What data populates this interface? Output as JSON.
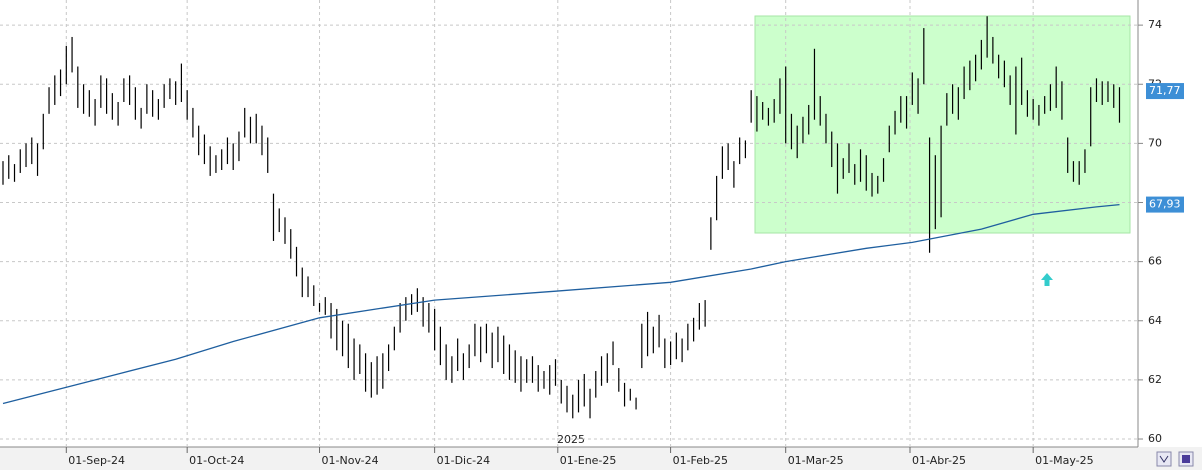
{
  "chart_data": {
    "type": "ohlc",
    "xlim": [
      0,
      196
    ],
    "xticks": [
      {
        "value": 11,
        "label": "01-Sep-24"
      },
      {
        "value": 32,
        "label": "01-Oct-24"
      },
      {
        "value": 55,
        "label": "01-Nov-24"
      },
      {
        "value": 75,
        "label": "01-Dic-24"
      },
      {
        "value": 96.4,
        "label": "01-Ene-25"
      },
      {
        "value": 116,
        "label": "01-Feb-25"
      },
      {
        "value": 136,
        "label": "01-Mar-25"
      },
      {
        "value": 157.6,
        "label": "01-Abr-25"
      },
      {
        "value": 179,
        "label": "01-May-25"
      }
    ],
    "year_label": "2025",
    "ylim": [
      59.73,
      74.85
    ],
    "yticks": [
      60,
      62,
      64,
      66,
      68,
      70,
      72,
      74
    ],
    "grid": true,
    "color": "#000000",
    "high": [
      69.4,
      69.6,
      69.3,
      69.8,
      70.0,
      70.2,
      70.0,
      71.0,
      71.9,
      72.3,
      72.5,
      73.3,
      73.6,
      72.6,
      72.0,
      71.8,
      71.5,
      72.3,
      72.2,
      71.7,
      71.4,
      72.2,
      72.3,
      71.9,
      71.2,
      72.0,
      71.8,
      71.5,
      72.0,
      72.2,
      72.1,
      72.7,
      71.8,
      71.2,
      70.6,
      70.3,
      69.9,
      69.6,
      69.8,
      70.2,
      70.0,
      70.4,
      71.2,
      70.9,
      71.0,
      70.6,
      70.2,
      68.3,
      67.8,
      67.5,
      67.1,
      66.5,
      65.8,
      65.5,
      65.2,
      64.6,
      64.8,
      64.6,
      64.4,
      64.0,
      63.9,
      63.4,
      63.2,
      62.9,
      62.6,
      62.8,
      62.9,
      63.2,
      63.8,
      64.6,
      64.8,
      64.9,
      65.1,
      64.8,
      64.6,
      64.4,
      63.8,
      63.2,
      62.8,
      63.4,
      62.9,
      63.2,
      63.9,
      63.8,
      63.9,
      63.6,
      63.8,
      63.5,
      63.2,
      63.0,
      62.8,
      62.7,
      62.8,
      62.5,
      62.3,
      62.5,
      62.7,
      62.0,
      61.8,
      61.5,
      62.0,
      62.2,
      61.7,
      62.3,
      62.8,
      62.9,
      63.3,
      62.4,
      61.9,
      61.7,
      61.4,
      63.9,
      64.3,
      63.8,
      64.2,
      63.4,
      63.3,
      63.6,
      63.4,
      63.9,
      64.1,
      64.6,
      64.7,
      67.5,
      68.9,
      69.9,
      70.0,
      69.4,
      70.2,
      70.1,
      71.8,
      71.6,
      71.4,
      71.2,
      71.5,
      72.2,
      72.6,
      71.0,
      70.6,
      70.9,
      71.3,
      73.2,
      71.6,
      71.0,
      70.4,
      70.0,
      69.5,
      70.0,
      69.3,
      69.8,
      69.6,
      69.0,
      68.9,
      69.5,
      70.6,
      71.1,
      71.6,
      71.6,
      72.4,
      72.2,
      73.9,
      70.2,
      69.6,
      70.6,
      71.7,
      72.0,
      71.9,
      72.6,
      72.8,
      73.0,
      73.5,
      74.3,
      73.6,
      73.0,
      72.8,
      72.3,
      72.6,
      72.9,
      71.8,
      71.5,
      71.3,
      71.6,
      72.0,
      72.6,
      72.1,
      70.2,
      69.4,
      69.4,
      69.8,
      71.9,
      72.2,
      72.1,
      72.1,
      72.0,
      71.9
    ],
    "low": [
      68.6,
      68.8,
      68.7,
      69.0,
      69.2,
      69.3,
      68.9,
      69.8,
      71.0,
      71.3,
      71.6,
      72.0,
      72.4,
      71.2,
      71.0,
      70.9,
      70.6,
      71.2,
      71.0,
      70.8,
      70.6,
      71.4,
      71.3,
      70.8,
      70.5,
      71.0,
      70.9,
      70.8,
      71.2,
      71.5,
      71.3,
      71.4,
      70.8,
      70.2,
      69.6,
      69.3,
      68.9,
      69.0,
      69.1,
      69.3,
      69.1,
      69.4,
      70.2,
      70.0,
      70.0,
      69.6,
      69.0,
      66.7,
      67.0,
      66.6,
      66.1,
      65.5,
      64.8,
      64.8,
      64.5,
      64.3,
      64.2,
      63.4,
      63.0,
      62.8,
      62.4,
      62.0,
      62.2,
      61.6,
      61.4,
      61.5,
      61.7,
      62.3,
      63.0,
      63.6,
      64.0,
      64.2,
      64.3,
      63.8,
      63.6,
      63.0,
      62.5,
      62.0,
      61.9,
      62.3,
      62.0,
      62.4,
      62.8,
      62.6,
      62.9,
      62.4,
      62.6,
      62.2,
      62.0,
      61.9,
      61.6,
      61.9,
      61.9,
      61.6,
      61.7,
      61.5,
      61.8,
      61.2,
      60.9,
      60.7,
      60.9,
      61.1,
      60.7,
      61.4,
      61.8,
      61.9,
      62.5,
      61.6,
      61.1,
      61.3,
      61.0,
      62.4,
      62.8,
      62.9,
      63.1,
      62.4,
      62.5,
      62.7,
      62.6,
      63.0,
      63.3,
      63.7,
      63.8,
      66.4,
      67.4,
      68.8,
      69.1,
      68.5,
      69.3,
      69.5,
      70.7,
      70.4,
      70.8,
      70.6,
      70.7,
      71.0,
      70.0,
      69.8,
      69.5,
      70.0,
      70.3,
      70.8,
      70.6,
      70.0,
      69.2,
      68.3,
      68.8,
      69.0,
      68.6,
      68.7,
      68.4,
      68.2,
      68.3,
      68.7,
      69.7,
      70.3,
      70.7,
      70.5,
      71.3,
      71.0,
      72.0,
      66.3,
      67.1,
      67.5,
      70.6,
      71.0,
      70.8,
      71.5,
      71.8,
      72.1,
      72.5,
      72.9,
      72.7,
      72.2,
      71.9,
      71.3,
      70.3,
      71.3,
      70.9,
      70.8,
      70.6,
      71.0,
      71.1,
      71.2,
      70.8,
      69.0,
      68.7,
      68.6,
      69.0,
      69.9,
      71.4,
      71.3,
      71.4,
      71.2,
      70.7
    ],
    "line": {
      "color": "#1f5f9f",
      "x": [
        0,
        10,
        20,
        30,
        40,
        55,
        65,
        75,
        96,
        116,
        130,
        136,
        150,
        158,
        170,
        179,
        190,
        194
      ],
      "values": [
        61.2,
        61.7,
        62.2,
        62.7,
        63.3,
        64.1,
        64.4,
        64.7,
        65.0,
        65.3,
        65.75,
        66.0,
        66.45,
        66.65,
        67.1,
        67.6,
        67.85,
        67.93
      ]
    },
    "price_tags": [
      {
        "value": 71.77,
        "label": "71,77"
      },
      {
        "value": 67.93,
        "label": "67,93"
      }
    ]
  }
}
